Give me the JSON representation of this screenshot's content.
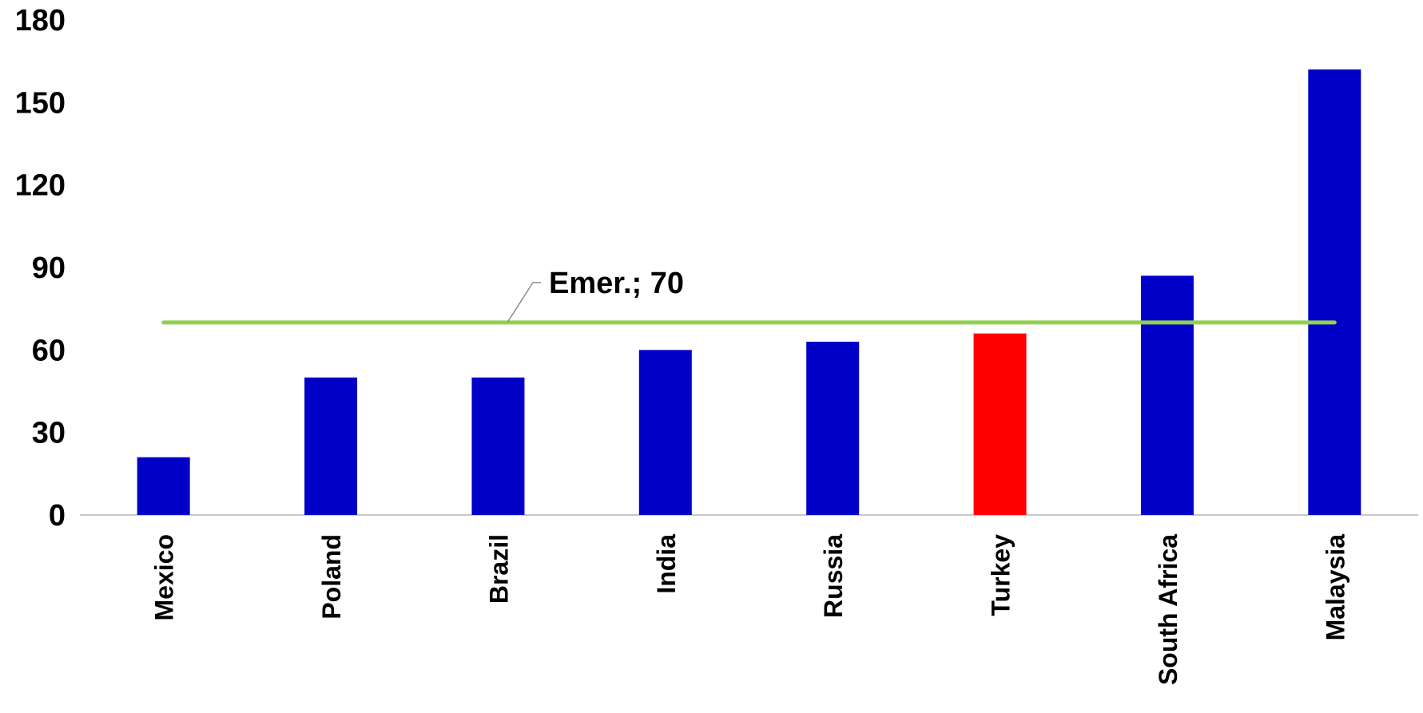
{
  "chart_data": {
    "type": "bar",
    "title": "",
    "xlabel": "",
    "ylabel": "",
    "categories": [
      "Mexico",
      "Poland",
      "Brazil",
      "India",
      "Russia",
      "Turkey",
      "South Africa",
      "Malaysia"
    ],
    "values": [
      21,
      50,
      50,
      60,
      63,
      66,
      87,
      162
    ],
    "ylim": [
      0,
      180
    ],
    "yticks": [
      0,
      30,
      60,
      90,
      120,
      150,
      180
    ],
    "grid": false,
    "bar_color": "#0000C8",
    "highlight": {
      "category": "Turkey",
      "color": "#FF0000"
    },
    "reference_line": {
      "label": "Emer.; 70",
      "value": 70,
      "color": "#92D050"
    }
  }
}
